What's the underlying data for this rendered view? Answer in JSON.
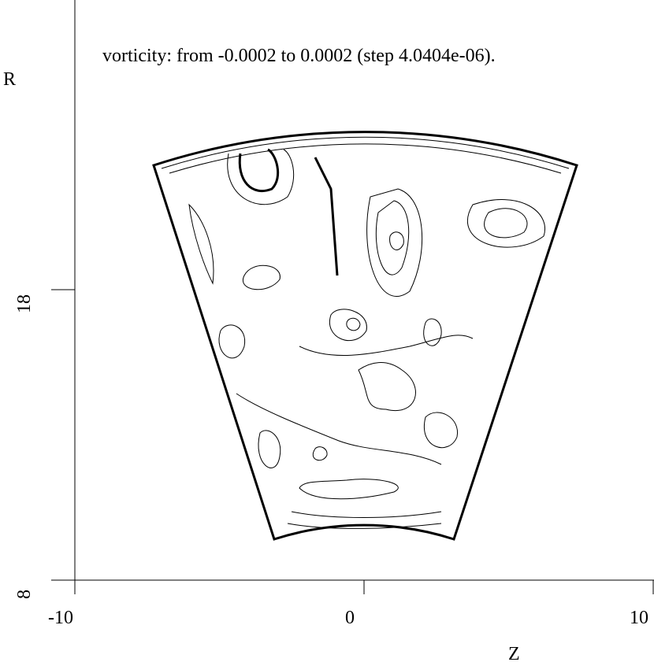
{
  "chart_data": {
    "type": "contour",
    "title": "vorticity: from -0.0002 to 0.0002 (step 4.0404e-06).",
    "x_label": "Z",
    "y_label": "R",
    "xlim": [
      -10,
      10
    ],
    "ylim": [
      8,
      28
    ],
    "xticks": [
      -10,
      0,
      10
    ],
    "yticks": [
      8,
      18
    ]
  }
}
